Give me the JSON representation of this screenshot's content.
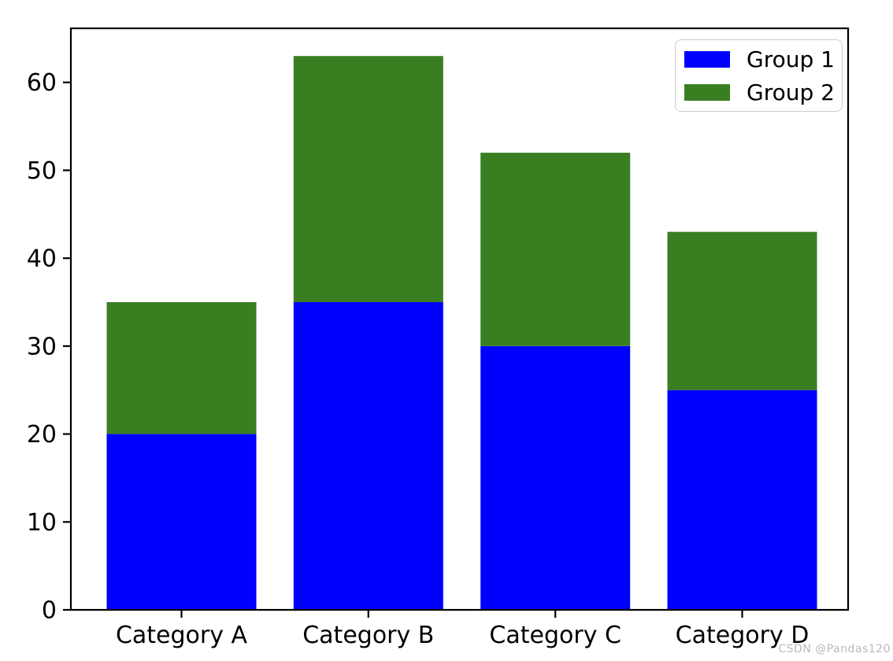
{
  "chart_data": {
    "type": "bar",
    "stacked": true,
    "categories": [
      "Category A",
      "Category B",
      "Category C",
      "Category D"
    ],
    "series": [
      {
        "name": "Group 1",
        "color": "#0000ff",
        "values": [
          20,
          35,
          30,
          25
        ]
      },
      {
        "name": "Group 2",
        "color": "#3a7e22",
        "values": [
          15,
          28,
          22,
          18
        ]
      }
    ],
    "stack_totals": [
      35,
      63,
      52,
      43
    ],
    "title": "",
    "xlabel": "",
    "ylabel": "",
    "ylim": [
      0,
      66.15
    ],
    "yticks": [
      0,
      10,
      20,
      30,
      40,
      50,
      60
    ],
    "grid": false,
    "legend_position": "upper right",
    "axis_color": "#000000",
    "tick_label_color": "#000000"
  },
  "legend": {
    "items": [
      {
        "label": "Group 1",
        "color": "#0000ff"
      },
      {
        "label": "Group 2",
        "color": "#3a7e22"
      }
    ]
  },
  "watermark": {
    "text": "CSDN @Pandas120"
  }
}
